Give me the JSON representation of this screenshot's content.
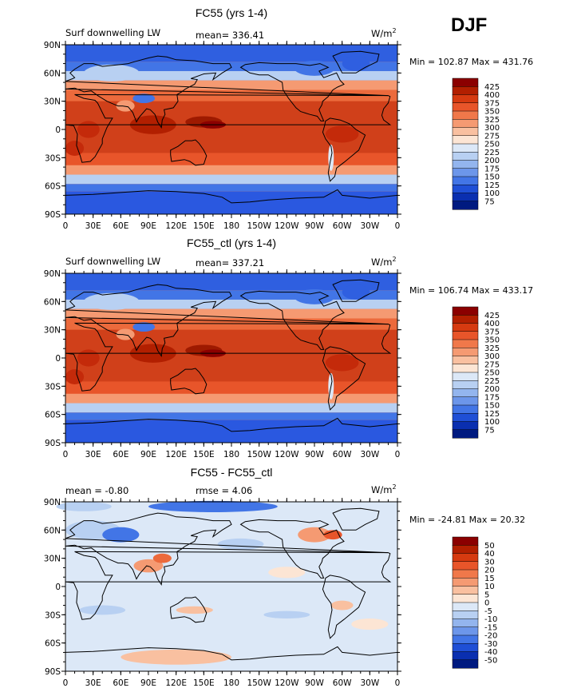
{
  "season": "DJF",
  "axes": {
    "lat_labels": [
      "90N",
      "60N",
      "30N",
      "0",
      "30S",
      "60S",
      "90S"
    ],
    "lon_labels": [
      "0",
      "30E",
      "60E",
      "90E",
      "120E",
      "150E",
      "180",
      "150W",
      "120W",
      "90W",
      "60W",
      "30W",
      "0"
    ]
  },
  "panels": [
    {
      "title": "FC55 (yrs 1-4)",
      "left_label": "Surf downwelling LW",
      "center_label": "mean=  336.41",
      "units_base": "W/m",
      "units_exp": "2",
      "minmax": "Min = 102.87 Max = 431.76",
      "colorbar": {
        "labels": [
          "425",
          "400",
          "375",
          "350",
          "325",
          "300",
          "275",
          "250",
          "225",
          "200",
          "175",
          "150",
          "125",
          "100",
          "75"
        ],
        "colors": [
          "#8b0000",
          "#b21f00",
          "#d63a10",
          "#e8552a",
          "#f0784a",
          "#f59a72",
          "#f9c0a0",
          "#fce5d4",
          "#dce8f7",
          "#b8d0f2",
          "#93b5ee",
          "#6c96ea",
          "#4275e6",
          "#1f4fd6",
          "#0a2fb0",
          "#001a80"
        ]
      }
    },
    {
      "title": "FC55_ctl (yrs 1-4)",
      "left_label": "Surf downwelling LW",
      "center_label": "mean=  337.21",
      "units_base": "W/m",
      "units_exp": "2",
      "minmax": "Min = 106.74 Max = 433.17",
      "colorbar": {
        "labels": [
          "425",
          "400",
          "375",
          "350",
          "325",
          "300",
          "275",
          "250",
          "225",
          "200",
          "175",
          "150",
          "125",
          "100",
          "75"
        ],
        "colors": [
          "#8b0000",
          "#b21f00",
          "#d63a10",
          "#e8552a",
          "#f0784a",
          "#f59a72",
          "#f9c0a0",
          "#fce5d4",
          "#dce8f7",
          "#b8d0f2",
          "#93b5ee",
          "#6c96ea",
          "#4275e6",
          "#1f4fd6",
          "#0a2fb0",
          "#001a80"
        ]
      }
    },
    {
      "title": "FC55 - FC55_ctl",
      "left_label": "mean =  -0.80",
      "center_label": "rmse =   4.06",
      "units_base": "W/m",
      "units_exp": "2",
      "minmax": "Min = -24.81 Max =  20.32",
      "colorbar": {
        "labels": [
          "50",
          "40",
          "30",
          "20",
          "15",
          "10",
          "5",
          "0",
          "-5",
          "-10",
          "-15",
          "-20",
          "-30",
          "-40",
          "-50"
        ],
        "colors": [
          "#8b0000",
          "#b21f00",
          "#d63a10",
          "#e8552a",
          "#f0784a",
          "#f59a72",
          "#f9c0a0",
          "#fce5d4",
          "#dce8f7",
          "#b8d0f2",
          "#93b5ee",
          "#6c96ea",
          "#4275e6",
          "#1f4fd6",
          "#0a2fb0",
          "#001a80"
        ]
      }
    }
  ],
  "palette": {
    "hot": "#c42a0a",
    "warm": "#e8552a",
    "mild": "#f59a72",
    "cool": "#b8d0f2",
    "cold": "#4275e6",
    "neutral": "#dce8f7"
  }
}
